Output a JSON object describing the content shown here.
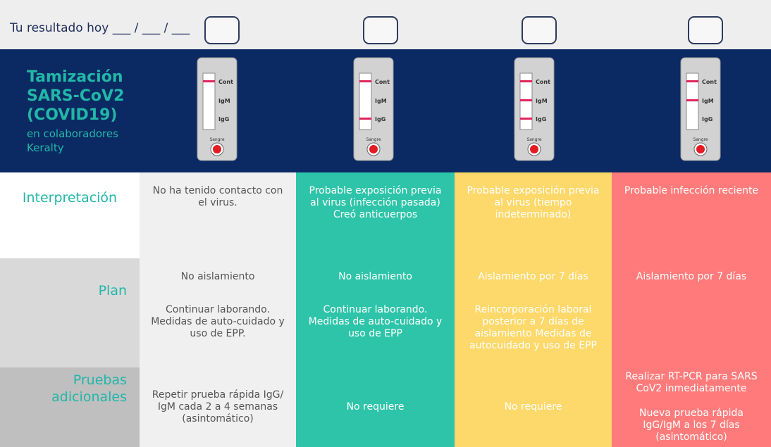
{
  "header": {
    "result_label": "Tu resultado hoy ___ / ___ / ___"
  },
  "banner": {
    "title_lines": [
      "Tamización",
      "SARS-CoV2",
      "(COVID19)"
    ],
    "subtitle_lines": [
      "en colaboradores",
      "Keralty"
    ]
  },
  "tests": [
    {
      "lines": [
        "Cont",
        "IgM",
        "IgG"
      ],
      "sample": "Sangre"
    },
    {
      "lines": [
        "Cont",
        "IgM",
        "IgG"
      ],
      "sample": "Sangre"
    },
    {
      "lines": [
        "Cont",
        "IgM",
        "IgG"
      ],
      "sample": "Sangre"
    },
    {
      "lines": [
        "Cont",
        "IgM",
        "IgG"
      ],
      "sample": "Sangre"
    }
  ],
  "rows": [
    {
      "label": "Interpretación",
      "cells": [
        [
          "No ha tenido contacto con el virus."
        ],
        [
          "Probable exposición previa al virus (infección pasada) Creó anticuerpos"
        ],
        [
          "Probable exposición previa  al virus (tiempo indeterminado)"
        ],
        [
          "Probable infección reciente"
        ]
      ]
    },
    {
      "label": "Plan",
      "cells": [
        [
          "No aislamiento",
          "Continuar laborando. Medidas de auto-cuidado y uso de EPP."
        ],
        [
          "No aislamiento",
          "Continuar laborando. Medidas de auto-cuidado y uso de EPP"
        ],
        [
          "Aislamiento por 7 días",
          "Reincorporación laboral posterior a 7 días de aislamiento Medidas de autocuidado y uso de EPP"
        ],
        [
          "Aislamiento por 7 días"
        ]
      ]
    },
    {
      "label": "Pruebas adicionales",
      "cells": [
        [
          "Repetir prueba rápida IgG/ IgM cada 2 a 4 semanas (asintomático)"
        ],
        [
          "No requiere"
        ],
        [
          "No requiere"
        ],
        [
          "Realizar RT-PCR para SARS CoV2 inmediatamente",
          "Nueva prueba rápida IgG/IgM a los 7 días (asintomático)"
        ]
      ]
    }
  ]
}
